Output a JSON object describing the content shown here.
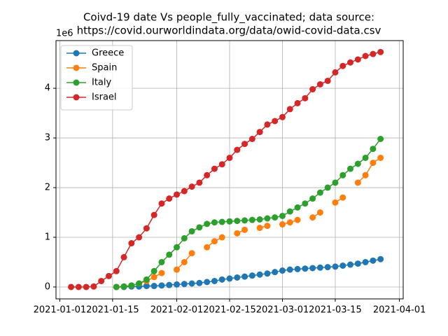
{
  "chart_data": {
    "type": "line",
    "title": [
      "Coivd-19 date Vs people_fully_vaccinated; data source:",
      "https://covid.ourworldindata.org/data/owid-covid-data.csv"
    ],
    "y_offset_label": "1e6",
    "x": [
      "2021-01-04",
      "2021-01-06",
      "2021-01-08",
      "2021-01-10",
      "2021-01-12",
      "2021-01-14",
      "2021-01-16",
      "2021-01-18",
      "2021-01-20",
      "2021-01-22",
      "2021-01-24",
      "2021-01-26",
      "2021-01-28",
      "2021-01-30",
      "2021-02-01",
      "2021-02-03",
      "2021-02-05",
      "2021-02-07",
      "2021-02-09",
      "2021-02-11",
      "2021-02-13",
      "2021-02-15",
      "2021-02-17",
      "2021-02-19",
      "2021-02-21",
      "2021-02-23",
      "2021-02-25",
      "2021-02-27",
      "2021-03-01",
      "2021-03-03",
      "2021-03-05",
      "2021-03-07",
      "2021-03-09",
      "2021-03-11",
      "2021-03-13",
      "2021-03-15",
      "2021-03-17",
      "2021-03-19",
      "2021-03-21",
      "2021-03-23",
      "2021-03-25",
      "2021-03-27"
    ],
    "series": [
      {
        "name": "Greece",
        "color": "#1f77b4",
        "values": [
          null,
          null,
          null,
          null,
          null,
          null,
          0,
          0,
          0.01,
          0.01,
          0.02,
          0.02,
          0.03,
          0.04,
          0.05,
          0.06,
          0.07,
          0.08,
          0.1,
          0.12,
          0.15,
          0.17,
          0.19,
          0.21,
          0.23,
          0.25,
          0.27,
          0.3,
          0.33,
          0.35,
          0.36,
          0.37,
          0.38,
          0.39,
          0.4,
          0.41,
          0.43,
          0.45,
          0.47,
          0.5,
          0.53,
          0.56
        ]
      },
      {
        "name": "Spain",
        "color": "#ff7f0e",
        "values": [
          null,
          null,
          null,
          null,
          null,
          null,
          0,
          0.01,
          0.03,
          0.07,
          0.12,
          0.2,
          0.28,
          null,
          0.35,
          0.5,
          0.68,
          null,
          0.8,
          0.92,
          1.0,
          null,
          1.08,
          1.15,
          null,
          1.19,
          1.23,
          null,
          1.26,
          1.3,
          1.35,
          null,
          1.4,
          1.5,
          null,
          1.7,
          1.8,
          null,
          2.1,
          2.25,
          2.5,
          2.6
        ]
      },
      {
        "name": "Italy",
        "color": "#2ca02c",
        "values": [
          null,
          null,
          null,
          null,
          null,
          null,
          0,
          0.01,
          0.03,
          0.07,
          0.15,
          0.32,
          0.5,
          0.65,
          0.8,
          0.98,
          1.12,
          1.2,
          1.27,
          1.3,
          1.31,
          1.32,
          1.33,
          1.34,
          1.35,
          1.36,
          1.38,
          1.4,
          1.43,
          1.52,
          1.6,
          1.68,
          1.78,
          1.9,
          2.0,
          2.1,
          2.25,
          2.38,
          2.48,
          2.6,
          2.78,
          2.98
        ]
      },
      {
        "name": "Israel",
        "color": "#d62728",
        "values": [
          0,
          0,
          0,
          0.01,
          0.12,
          0.22,
          0.32,
          0.6,
          0.88,
          1.0,
          1.18,
          1.45,
          1.68,
          1.78,
          1.86,
          1.93,
          2.02,
          2.1,
          2.25,
          2.38,
          2.47,
          2.6,
          2.76,
          2.88,
          2.98,
          3.12,
          3.27,
          3.34,
          3.42,
          3.58,
          3.7,
          3.8,
          3.98,
          4.08,
          4.15,
          4.32,
          4.45,
          4.52,
          4.58,
          4.65,
          4.69,
          4.73
        ]
      }
    ],
    "xlim": [
      "2020-12-31",
      "2021-04-02"
    ],
    "xticks": [
      "2021-01-01",
      "2021-01-15",
      "2021-02-01",
      "2021-02-15",
      "2021-03-01",
      "2021-03-15",
      "2021-04-01"
    ],
    "ylim": [
      -0.24,
      4.96
    ],
    "yticks": [
      0,
      1,
      2,
      3,
      4
    ],
    "grid": true,
    "legend": "upper-left"
  }
}
